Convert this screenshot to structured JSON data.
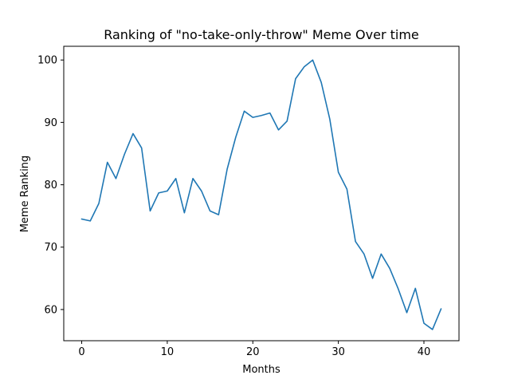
{
  "chart_data": {
    "type": "line",
    "title": "Ranking of \"no-take-only-throw\" Meme Over time",
    "xlabel": "Months",
    "ylabel": "Meme Ranking",
    "xlim": [
      -2.1,
      44.1
    ],
    "ylim": [
      55.0,
      102.2
    ],
    "xticks": [
      0,
      10,
      20,
      30,
      40
    ],
    "yticks": [
      60,
      70,
      80,
      90,
      100
    ],
    "grid": false,
    "series": [
      {
        "color": "#1f77b4",
        "x": [
          0,
          1,
          2,
          3,
          4,
          5,
          6,
          7,
          8,
          9,
          10,
          11,
          12,
          13,
          14,
          15,
          16,
          17,
          18,
          19,
          20,
          21,
          22,
          23,
          24,
          25,
          26,
          27,
          28,
          29,
          30,
          31,
          32,
          33,
          34,
          35,
          36,
          37,
          38,
          39,
          40,
          41,
          42
        ],
        "values": [
          74.5,
          74.2,
          77.0,
          83.6,
          81.0,
          84.9,
          88.2,
          85.9,
          75.8,
          78.7,
          79.0,
          81.0,
          75.5,
          81.0,
          79.0,
          75.8,
          75.2,
          82.5,
          87.6,
          91.8,
          90.8,
          91.1,
          91.5,
          88.8,
          90.2,
          97.0,
          98.9,
          100.0,
          96.4,
          90.5,
          82.0,
          79.3,
          70.9,
          68.9,
          65.0,
          68.9,
          66.6,
          63.3,
          59.5,
          63.4,
          57.8,
          56.8,
          60.1
        ]
      }
    ]
  }
}
